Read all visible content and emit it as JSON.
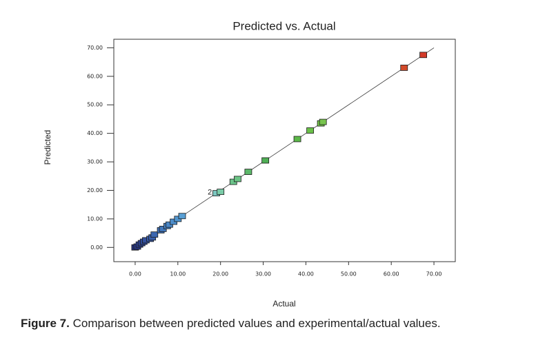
{
  "chart_data": {
    "type": "scatter",
    "title": "Predicted vs. Actual",
    "xlabel": "Actual",
    "ylabel": "Predicted",
    "xlim": [
      -5,
      75
    ],
    "ylim": [
      -5,
      73
    ],
    "xticks": [
      {
        "value": 0,
        "label": "0.00"
      },
      {
        "value": 10,
        "label": "10.00"
      },
      {
        "value": 20,
        "label": "20.00"
      },
      {
        "value": 30,
        "label": "30.00"
      },
      {
        "value": 40,
        "label": "40.00"
      },
      {
        "value": 50,
        "label": "50.00"
      },
      {
        "value": 60,
        "label": "60.00"
      },
      {
        "value": 70,
        "label": "70.00"
      }
    ],
    "yticks": [
      {
        "value": 0,
        "label": "0.00"
      },
      {
        "value": 10,
        "label": "10.00"
      },
      {
        "value": 20,
        "label": "20.00"
      },
      {
        "value": 30,
        "label": "30.00"
      },
      {
        "value": 40,
        "label": "40.00"
      },
      {
        "value": 50,
        "label": "50.00"
      },
      {
        "value": 60,
        "label": "60.00"
      },
      {
        "value": 70,
        "label": "70.00"
      }
    ],
    "reference_line": {
      "x": [
        0,
        70
      ],
      "y": [
        0,
        70
      ]
    },
    "series": [
      {
        "x": [
          0,
          0.5,
          1,
          1.5,
          2,
          2.5,
          3.5,
          4,
          4.5,
          6,
          6.5,
          7.5,
          8,
          9,
          10,
          11,
          19,
          20,
          23,
          24,
          26.5,
          30.5,
          38,
          41,
          43.5,
          44,
          63,
          67.5
        ],
        "values": [
          0,
          0.3,
          1,
          1.5,
          2,
          2.5,
          3,
          3.5,
          4.5,
          6,
          6.5,
          7.5,
          8,
          9,
          10,
          11,
          19,
          19.5,
          23,
          24,
          26.5,
          30.5,
          38,
          41,
          43.5,
          44,
          63,
          67.5
        ],
        "colors": [
          "#27337a",
          "#2a3a86",
          "#2c3f8c",
          "#2e4592",
          "#304a98",
          "#33509c",
          "#3658a4",
          "#395fab",
          "#3c67b0",
          "#3f70b6",
          "#4277ba",
          "#467fc0",
          "#4986c5",
          "#4d8dca",
          "#5296cf",
          "#589fd4",
          "#7cc6c0",
          "#7acca8",
          "#6cc48a",
          "#6cc486",
          "#5cb86a",
          "#4fae55",
          "#5cb848",
          "#6ac048",
          "#76c44c",
          "#78c44e",
          "#d24a2a",
          "#d23a28"
        ]
      }
    ],
    "annotations": [
      {
        "text": "2",
        "x": 17.5,
        "y": 19.3
      }
    ]
  },
  "caption": {
    "label": "Figure 7.",
    "text": " Comparison between predicted values and experimental/actual values."
  }
}
